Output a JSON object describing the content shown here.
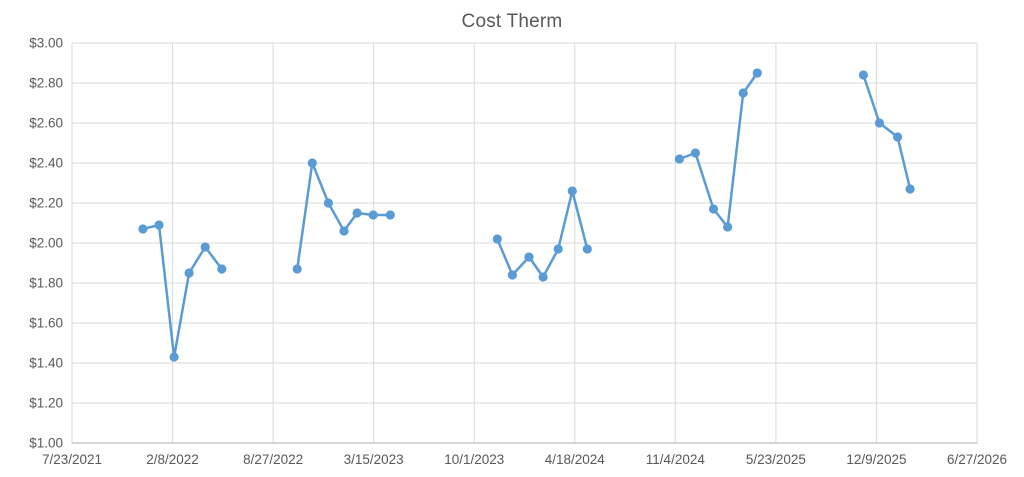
{
  "chart": {
    "title": "Cost Therm"
  },
  "chart_data": {
    "type": "line",
    "title": "Cost Therm",
    "xlabel": "",
    "ylabel": "",
    "grid": true,
    "legend": false,
    "x_axis": {
      "type": "date",
      "min": "7/23/2021",
      "max": "6/27/2026",
      "tick_labels": [
        "7/23/2021",
        "2/8/2022",
        "8/27/2022",
        "3/15/2023",
        "10/1/2023",
        "4/18/2024",
        "11/4/2024",
        "5/23/2025",
        "12/9/2025",
        "6/27/2026"
      ]
    },
    "y_axis": {
      "min": 1.0,
      "max": 3.0,
      "step": 0.2,
      "tick_labels": [
        "$1.00",
        "$1.20",
        "$1.40",
        "$1.60",
        "$1.80",
        "$2.00",
        "$2.20",
        "$2.40",
        "$2.60",
        "$2.80",
        "$3.00"
      ]
    },
    "series": [
      {
        "name": "Cost Therm",
        "color": "#5B9BD5",
        "marker": "circle",
        "segments": [
          [
            {
              "x": "12/11/2021",
              "y": 2.07
            },
            {
              "x": "1/12/2022",
              "y": 2.09
            },
            {
              "x": "2/11/2022",
              "y": 1.43
            },
            {
              "x": "3/13/2022",
              "y": 1.85
            },
            {
              "x": "4/14/2022",
              "y": 1.98
            },
            {
              "x": "5/17/2022",
              "y": 1.87
            }
          ],
          [
            {
              "x": "10/14/2022",
              "y": 1.87
            },
            {
              "x": "11/13/2022",
              "y": 2.4
            },
            {
              "x": "12/15/2022",
              "y": 2.2
            },
            {
              "x": "1/15/2023",
              "y": 2.06
            },
            {
              "x": "2/10/2023",
              "y": 2.15
            },
            {
              "x": "3/14/2023",
              "y": 2.14
            },
            {
              "x": "4/17/2023",
              "y": 2.14
            }
          ],
          [
            {
              "x": "11/16/2023",
              "y": 2.02
            },
            {
              "x": "12/16/2023",
              "y": 1.84
            },
            {
              "x": "1/18/2024",
              "y": 1.93
            },
            {
              "x": "2/15/2024",
              "y": 1.83
            },
            {
              "x": "3/16/2024",
              "y": 1.97
            },
            {
              "x": "4/13/2024",
              "y": 2.26
            },
            {
              "x": "5/13/2024",
              "y": 1.97
            }
          ],
          [
            {
              "x": "11/12/2024",
              "y": 2.42
            },
            {
              "x": "12/14/2024",
              "y": 2.45
            },
            {
              "x": "1/19/2025",
              "y": 2.17
            },
            {
              "x": "2/16/2025",
              "y": 2.08
            },
            {
              "x": "3/19/2025",
              "y": 2.75
            },
            {
              "x": "4/16/2025",
              "y": 2.85
            }
          ],
          [
            {
              "x": "11/13/2025",
              "y": 2.84
            },
            {
              "x": "12/15/2025",
              "y": 2.6
            },
            {
              "x": "1/20/2026",
              "y": 2.53
            },
            {
              "x": "2/14/2026",
              "y": 2.27
            }
          ]
        ]
      }
    ],
    "colors": {
      "series_blue": "#5B9BD5",
      "gridline": "#D9D9D9",
      "axis_line": "#BFBFBF",
      "text": "#595959",
      "background": "#FFFFFF"
    }
  }
}
